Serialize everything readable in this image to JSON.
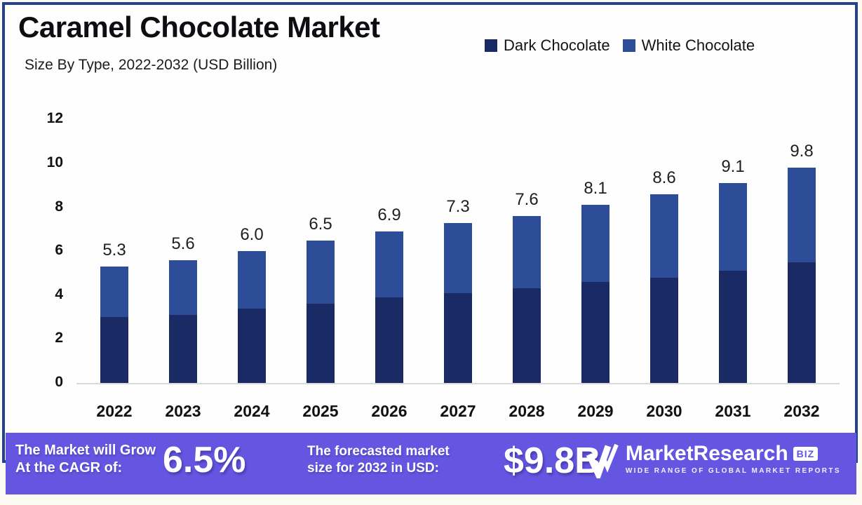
{
  "header": {
    "title": "Caramel Chocolate Market",
    "subtitle": "Size By Type, 2022-2032 (USD Billion)"
  },
  "legend": [
    {
      "label": "Dark Chocolate",
      "color": "#1a2a64"
    },
    {
      "label": "White Chocolate",
      "color": "#2d4d99"
    }
  ],
  "chart_data": {
    "type": "bar",
    "stacked": true,
    "title": "Caramel Chocolate Market",
    "subtitle": "Size By Type, 2022-2032 (USD Billion)",
    "unit": "USD Billion",
    "categories": [
      "2022",
      "2023",
      "2024",
      "2025",
      "2026",
      "2027",
      "2028",
      "2029",
      "2030",
      "2031",
      "2032"
    ],
    "series": [
      {
        "name": "Dark Chocolate",
        "color": "#1a2a64",
        "values": [
          3.0,
          3.1,
          3.4,
          3.6,
          3.9,
          4.1,
          4.3,
          4.6,
          4.8,
          5.1,
          5.5
        ]
      },
      {
        "name": "White Chocolate",
        "color": "#2d4d99",
        "values": [
          2.3,
          2.5,
          2.6,
          2.9,
          3.0,
          3.2,
          3.3,
          3.5,
          3.8,
          4.0,
          4.3
        ]
      }
    ],
    "totals": [
      5.3,
      5.6,
      6.0,
      6.5,
      6.9,
      7.3,
      7.6,
      8.1,
      8.6,
      9.1,
      9.8
    ],
    "total_labels": [
      "5.3",
      "5.6",
      "6.0",
      "6.5",
      "6.9",
      "7.3",
      "7.6",
      "8.1",
      "8.6",
      "9.1",
      "9.8"
    ],
    "yticks": [
      0,
      2,
      4,
      6,
      8,
      10,
      12
    ],
    "ylim": [
      0,
      12
    ],
    "grid": false,
    "legend_position": "top-right"
  },
  "banner": {
    "cagr_label_line1": "The Market will Grow",
    "cagr_label_line2": "At the CAGR of:",
    "cagr_value": "6.5%",
    "forecast_label_line1": "The forecasted market",
    "forecast_label_line2": "size for 2032 in USD:",
    "forecast_value": "$9.8B",
    "logo": {
      "name": "MarketResearch",
      "suffix": "BIZ",
      "tagline": "WIDE RANGE OF GLOBAL MARKET REPORTS"
    },
    "background": "#6456e0"
  },
  "colors": {
    "card_border": "#23438f",
    "dark_chocolate": "#1a2a64",
    "white_chocolate": "#2d4d99",
    "banner_purple": "#6456e0",
    "baseline_gray": "#d9d9d9"
  }
}
